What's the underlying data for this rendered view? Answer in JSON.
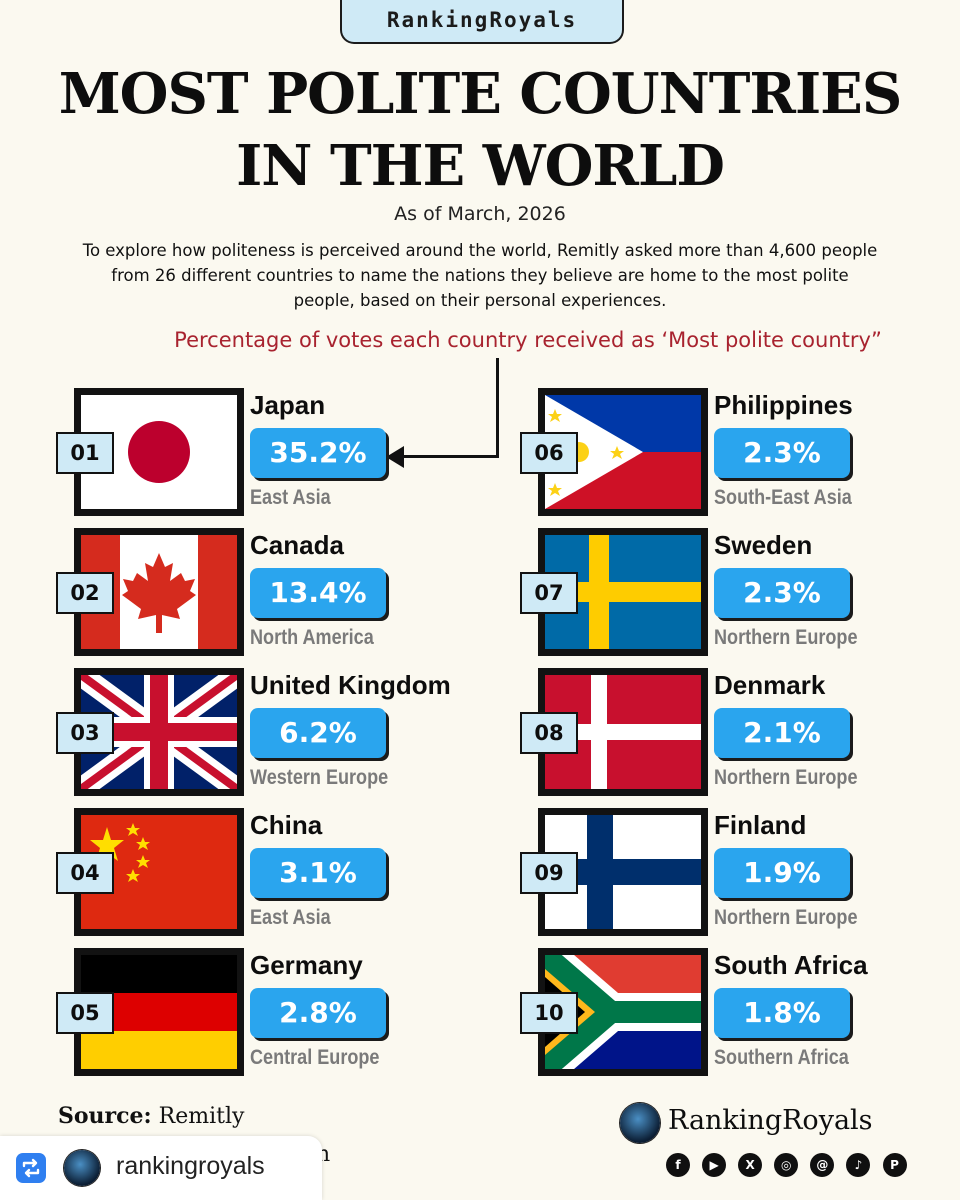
{
  "header": {
    "brand_tab": "RankingRoyals",
    "title_line1": "MOST POLITE COUNTRIES",
    "title_line2": "IN THE WORLD",
    "subtitle": "As of March, 2026",
    "intro_line1": "To explore how politeness is perceived around the world, Remitly asked more than 4,600 people",
    "intro_line2": "from 26 different countries to name the nations they believe are home to the most polite",
    "intro_line3": "people, based on their personal experiences.",
    "vote_note": "Percentage of votes each country received as ‘Most polite country”"
  },
  "countries": [
    {
      "rank": "01",
      "name": "Japan",
      "percent": "35.2%",
      "region": "East Asia",
      "flag": "japan-flag"
    },
    {
      "rank": "02",
      "name": "Canada",
      "percent": "13.4%",
      "region": "North America",
      "flag": "canada-flag"
    },
    {
      "rank": "03",
      "name": "United Kingdom",
      "percent": "6.2%",
      "region": "Western Europe",
      "flag": "uk-flag"
    },
    {
      "rank": "04",
      "name": "China",
      "percent": "3.1%",
      "region": "East Asia",
      "flag": "china-flag"
    },
    {
      "rank": "05",
      "name": "Germany",
      "percent": "2.8%",
      "region": "Central Europe",
      "flag": "germany-flag"
    },
    {
      "rank": "06",
      "name": "Philippines",
      "percent": "2.3%",
      "region": "South-East Asia",
      "flag": "philippines-flag"
    },
    {
      "rank": "07",
      "name": "Sweden",
      "percent": "2.3%",
      "region": "Northern Europe",
      "flag": "sweden-flag"
    },
    {
      "rank": "08",
      "name": "Denmark",
      "percent": "2.1%",
      "region": "Northern Europe",
      "flag": "denmark-flag"
    },
    {
      "rank": "09",
      "name": "Finland",
      "percent": "1.9%",
      "region": "Northern Europe",
      "flag": "finland-flag"
    },
    {
      "rank": "10",
      "name": "South Africa",
      "percent": "1.8%",
      "region": "Southern Africa",
      "flag": "south-africa-flag"
    }
  ],
  "footer": {
    "source_label": "Source:",
    "source_value": "Remitly",
    "brand_name": "RankingRoyals",
    "hidden_tail": "n",
    "socials": [
      {
        "icon": "facebook-icon",
        "glyph": "f"
      },
      {
        "icon": "youtube-icon",
        "glyph": "▶"
      },
      {
        "icon": "x-icon",
        "glyph": "X"
      },
      {
        "icon": "instagram-icon",
        "glyph": "◎"
      },
      {
        "icon": "threads-icon",
        "glyph": "@"
      },
      {
        "icon": "tiktok-icon",
        "glyph": "♪"
      },
      {
        "icon": "pinterest-icon",
        "glyph": "P"
      }
    ]
  },
  "repost": {
    "username": "rankingroyals"
  },
  "colors": {
    "background": "#fbf9f0",
    "accent_blue": "#2aa5ee",
    "badge_blue": "#cfeaf6",
    "note_red": "#a8232f",
    "region_gray": "#7a7a7a"
  }
}
